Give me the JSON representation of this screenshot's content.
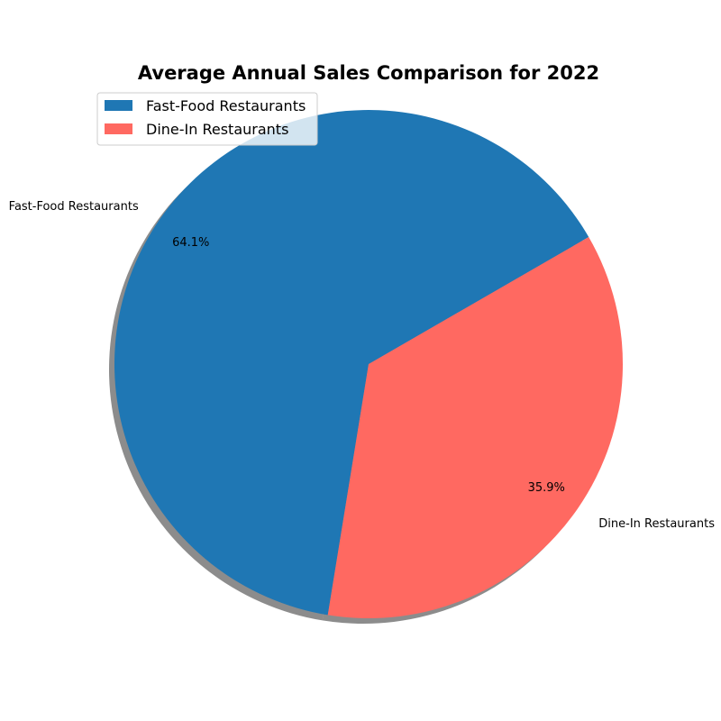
{
  "chart_data": {
    "type": "pie",
    "title": "Average Annual Sales Comparison for 2022",
    "categories": [
      "Fast-Food Restaurants",
      "Dine-In Restaurants"
    ],
    "values": [
      64.1,
      35.9
    ],
    "value_labels": [
      "64.1%",
      "35.9%"
    ],
    "colors": [
      "#1f77b4",
      "#ff6961"
    ],
    "start_angle_deg": 30,
    "direction": "counterclockwise",
    "shadow": true,
    "legend": {
      "placement": "upper-left",
      "entries": [
        "Fast-Food Restaurants",
        "Dine-In Restaurants"
      ]
    }
  }
}
